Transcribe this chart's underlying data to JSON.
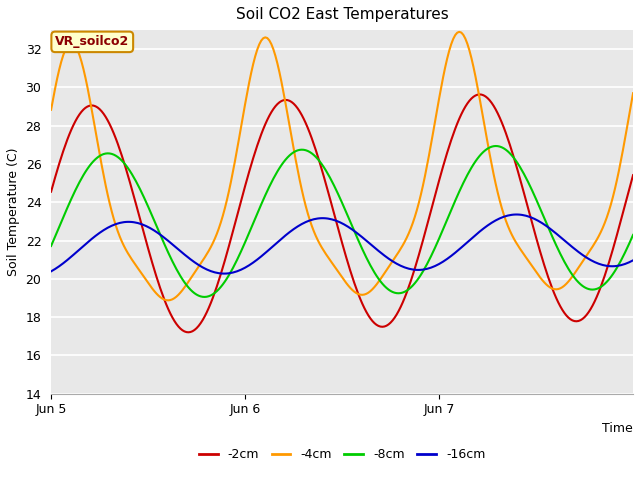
{
  "title": "Soil CO2 East Temperatures",
  "xlabel": "Time",
  "ylabel": "Soil Temperature (C)",
  "ylim": [
    14,
    33
  ],
  "yticks": [
    14,
    16,
    18,
    20,
    22,
    24,
    26,
    28,
    30,
    32
  ],
  "x_ticks_labels": [
    "Jun 5",
    "Jun 6",
    "Jun 7"
  ],
  "x_ticks_positions": [
    0,
    96,
    192
  ],
  "total_points": 289,
  "annotation_text": "VR_soilco2",
  "annotation_bg": "#ffffcc",
  "annotation_border": "#cc8800",
  "colors": {
    "neg2cm": "#cc0000",
    "neg4cm": "#ff9900",
    "neg8cm": "#00cc00",
    "neg16cm": "#0000cc"
  },
  "legend_labels": [
    "-2cm",
    "-4cm",
    "-8cm",
    "-16cm"
  ],
  "fig_facecolor": "#ffffff",
  "plot_facecolor": "#e8e8e8"
}
